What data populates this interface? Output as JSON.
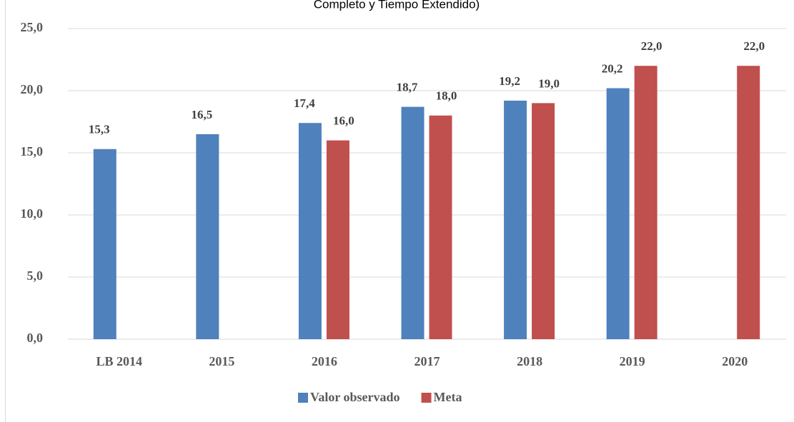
{
  "chart_data": {
    "type": "bar",
    "title": "Completo y Tiempo Extendido)",
    "categories": [
      "LB 2014",
      "2015",
      "2016",
      "2017",
      "2018",
      "2019",
      "2020"
    ],
    "series": [
      {
        "name": "Valor observado",
        "color": "#4f81bd",
        "values": [
          15.3,
          16.5,
          17.4,
          18.7,
          19.2,
          20.2,
          null
        ],
        "value_labels": [
          "15,3",
          "16,5",
          "17,4",
          "18,7",
          "19,2",
          "20,2",
          null
        ]
      },
      {
        "name": "Meta",
        "color": "#c0504d",
        "values": [
          null,
          null,
          16.0,
          18.0,
          19.0,
          22.0,
          22.0
        ],
        "value_labels": [
          null,
          null,
          "16,0",
          "18,0",
          "19,0",
          "22,0",
          "22,0"
        ]
      }
    ],
    "ylim": [
      0,
      25
    ],
    "yticks": [
      {
        "value": 0,
        "label": "0,0"
      },
      {
        "value": 5,
        "label": "5,0"
      },
      {
        "value": 10,
        "label": "10,0"
      },
      {
        "value": 15,
        "label": "15,0"
      },
      {
        "value": 20,
        "label": "20,0"
      },
      {
        "value": 25,
        "label": "25,0"
      }
    ],
    "grid": true,
    "legend": "bottom"
  }
}
